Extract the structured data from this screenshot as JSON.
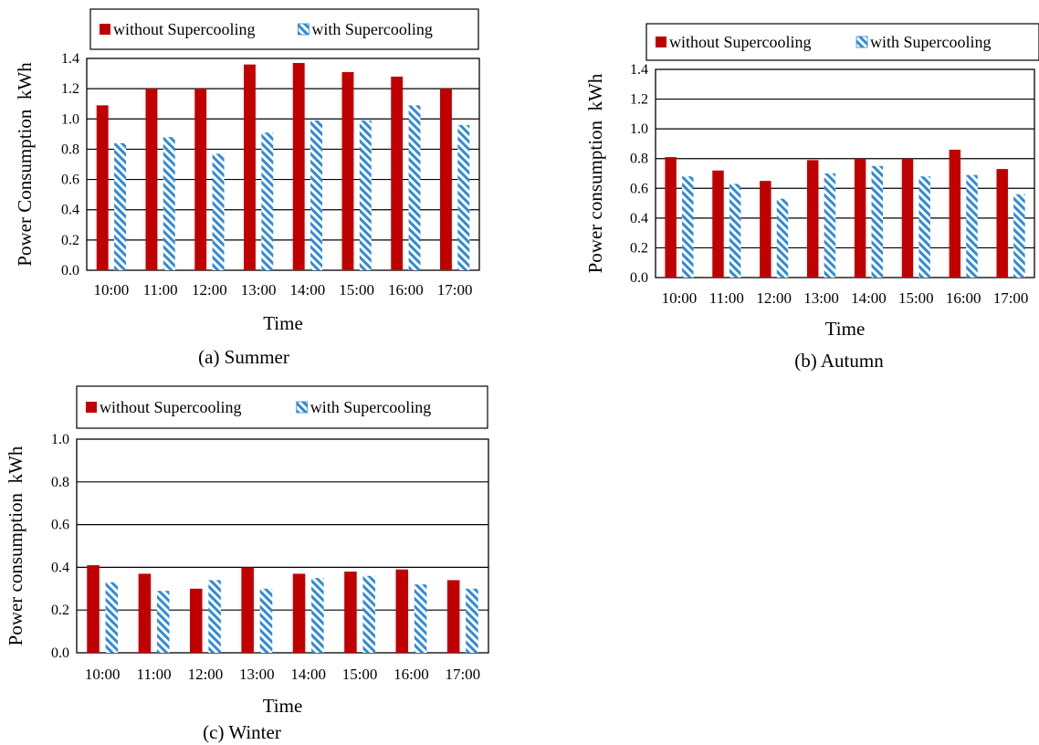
{
  "chart_data": [
    {
      "type": "bar",
      "caption": "(a) Summer",
      "categories": [
        "10:00",
        "11:00",
        "12:00",
        "13:00",
        "14:00",
        "15:00",
        "16:00",
        "17:00"
      ],
      "series": [
        {
          "name": "without Supercooling",
          "values": [
            1.09,
            1.2,
            1.2,
            1.36,
            1.37,
            1.31,
            1.28,
            1.2
          ]
        },
        {
          "name": "with Supercooling",
          "values": [
            0.84,
            0.88,
            0.77,
            0.91,
            0.99,
            0.99,
            1.09,
            0.96
          ]
        }
      ],
      "xlabel": "Time",
      "ylabel": "Power Consumption  kWh",
      "ylim": [
        0,
        1.4
      ],
      "yticks": [
        "0.0",
        "0.2",
        "0.4",
        "0.6",
        "0.8",
        "1.0",
        "1.2",
        "1.4"
      ],
      "grid": true,
      "legend": "top"
    },
    {
      "type": "bar",
      "caption": "(b) Autumn",
      "categories": [
        "10:00",
        "11:00",
        "12:00",
        "13:00",
        "14:00",
        "15:00",
        "16:00",
        "17:00"
      ],
      "series": [
        {
          "name": "without Supercooling",
          "values": [
            0.81,
            0.72,
            0.65,
            0.79,
            0.8,
            0.8,
            0.86,
            0.73
          ]
        },
        {
          "name": "with Supercooling",
          "values": [
            0.68,
            0.63,
            0.53,
            0.7,
            0.75,
            0.68,
            0.69,
            0.56
          ]
        }
      ],
      "xlabel": "Time",
      "ylabel": "Power consumption  kWh",
      "ylim": [
        0,
        1.4
      ],
      "yticks": [
        "0.0",
        "0.2",
        "0.4",
        "0.6",
        "0.8",
        "1.0",
        "1.2",
        "1.4"
      ],
      "grid": true,
      "legend": "top"
    },
    {
      "type": "bar",
      "caption": "(c) Winter",
      "categories": [
        "10:00",
        "11:00",
        "12:00",
        "13:00",
        "14:00",
        "15:00",
        "16:00",
        "17:00"
      ],
      "series": [
        {
          "name": "without Supercooling",
          "values": [
            0.41,
            0.37,
            0.3,
            0.4,
            0.37,
            0.38,
            0.39,
            0.34
          ]
        },
        {
          "name": "with Supercooling",
          "values": [
            0.33,
            0.29,
            0.34,
            0.3,
            0.35,
            0.36,
            0.32,
            0.3
          ]
        }
      ],
      "xlabel": "Time",
      "ylabel": "Power consumption  kWh",
      "ylim": [
        0,
        1.0
      ],
      "yticks": [
        "0.0",
        "0.2",
        "0.4",
        "0.6",
        "0.8",
        "1.0"
      ],
      "grid": true,
      "legend": "top"
    }
  ],
  "colors": {
    "without": "#c00000",
    "with_stripe": "#2e8ad8",
    "with_bg": "#ffffff",
    "grid": "#000000"
  }
}
